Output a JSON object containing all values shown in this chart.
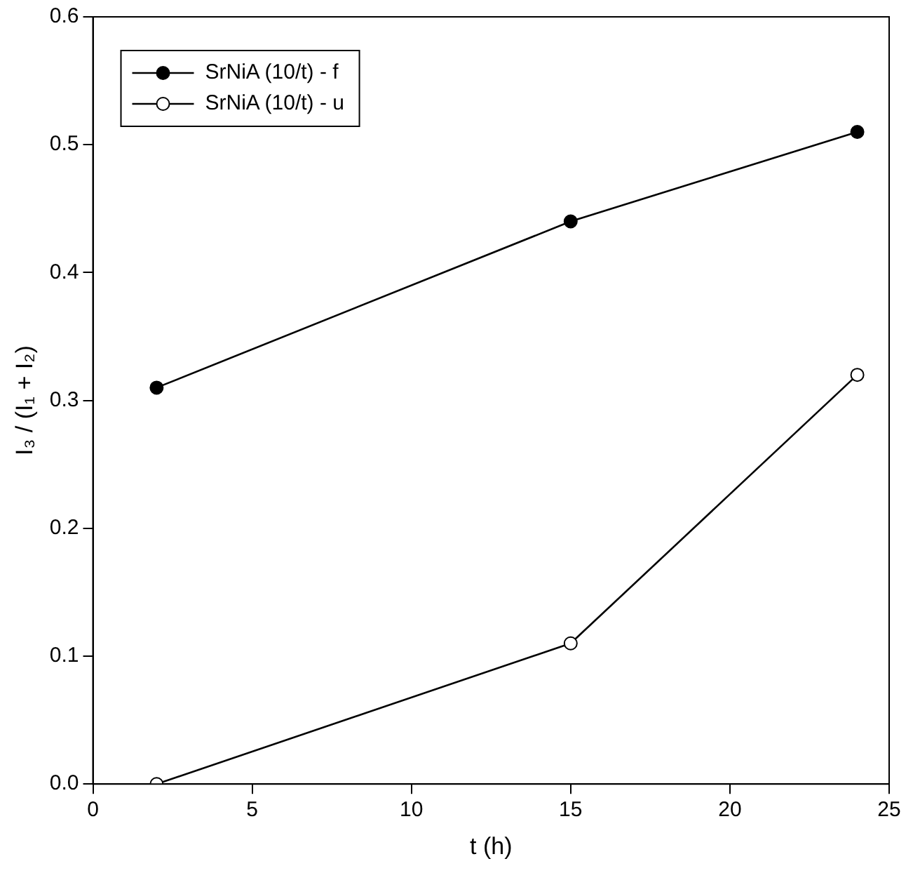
{
  "chart_data": {
    "type": "line",
    "xlabel": "t (h)",
    "ylabel": "I₃ / (I₁ + I₂)",
    "x": [
      2,
      15,
      24
    ],
    "series": [
      {
        "name": "SrNiA (10/t) - f",
        "color": "#000000",
        "values": [
          0.31,
          0.44,
          0.51
        ]
      },
      {
        "name": "SrNiA (10/t) - u",
        "color": "#000000",
        "values": [
          0.0,
          0.11,
          0.32
        ]
      }
    ],
    "xlim": [
      0,
      25
    ],
    "xticks": [
      0,
      5,
      10,
      15,
      20,
      25
    ],
    "ylim": [
      0,
      0.6
    ],
    "yticks": [
      {
        "value": 0,
        "label": "0.0"
      },
      {
        "value": 0.1,
        "label": "0.1"
      },
      {
        "value": 0.2,
        "label": "0.2"
      },
      {
        "value": 0.3,
        "label": "0.3"
      },
      {
        "value": 0.4,
        "label": "0.4"
      },
      {
        "value": 0.5,
        "label": "0.5"
      },
      {
        "value": 0.6,
        "label": "0.6"
      }
    ],
    "grid": false,
    "legend": "top left",
    "marker": "circle",
    "line_style": "solid"
  }
}
